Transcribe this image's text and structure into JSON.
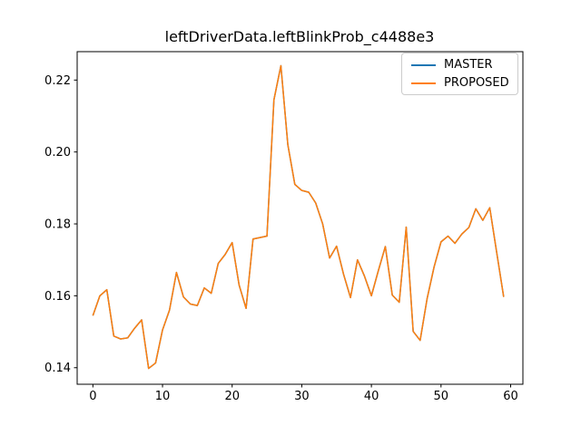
{
  "figure": {
    "title": "leftDriverData.leftBlinkProb_c4488e3",
    "background": "#ffffff",
    "axes_edge_color": "#000000"
  },
  "legend": {
    "position": "upper right",
    "entries": [
      {
        "label": "MASTER",
        "color": "#1f77b4"
      },
      {
        "label": "PROPOSED",
        "color": "#ff7f0e"
      }
    ]
  },
  "chart_data": {
    "type": "line",
    "title": "leftDriverData.leftBlinkProb_c4488e3",
    "xlabel": "",
    "ylabel": "",
    "grid": false,
    "legend_position": "upper right",
    "xlim": [
      -2.26,
      61.76
    ],
    "ylim": [
      0.1354,
      0.2279
    ],
    "xticks": [
      0,
      10,
      20,
      30,
      40,
      50,
      60
    ],
    "xtick_labels": [
      "0",
      "10",
      "20",
      "30",
      "40",
      "50",
      "60"
    ],
    "yticks": [
      0.14,
      0.16,
      0.18,
      0.2,
      0.22
    ],
    "ytick_labels": [
      "0.14",
      "0.16",
      "0.18",
      "0.20",
      "0.22"
    ],
    "x": [
      0,
      1,
      2,
      3,
      4,
      5,
      6,
      7,
      8,
      9,
      10,
      11,
      12,
      13,
      14,
      15,
      16,
      17,
      18,
      19,
      20,
      21,
      22,
      23,
      24,
      25,
      26,
      27,
      28,
      29,
      30,
      31,
      32,
      33,
      34,
      35,
      36,
      37,
      38,
      39,
      40,
      41,
      42,
      43,
      44,
      45,
      46,
      47,
      48,
      49,
      50,
      51,
      52,
      53,
      54,
      55,
      56,
      57,
      58,
      59
    ],
    "series": [
      {
        "name": "MASTER",
        "color": "#1f77b4",
        "values": [
          0.1545,
          0.16,
          0.1617,
          0.1488,
          0.148,
          0.1483,
          0.151,
          0.1533,
          0.1398,
          0.1413,
          0.1505,
          0.156,
          0.1665,
          0.1597,
          0.1577,
          0.1573,
          0.1622,
          0.1607,
          0.169,
          0.1715,
          0.1748,
          0.163,
          0.1565,
          0.1758,
          0.1762,
          0.1766,
          0.2145,
          0.224,
          0.202,
          0.191,
          0.1893,
          0.1888,
          0.1858,
          0.18,
          0.1705,
          0.1738,
          0.166,
          0.1595,
          0.17,
          0.1655,
          0.16,
          0.167,
          0.1737,
          0.1602,
          0.1582,
          0.1791,
          0.1501,
          0.1476,
          0.1592,
          0.168,
          0.175,
          0.1766,
          0.1746,
          0.1772,
          0.179,
          0.1842,
          0.181,
          0.1845,
          0.172,
          0.1597
        ]
      },
      {
        "name": "PROPOSED",
        "color": "#ff7f0e",
        "values": [
          0.1545,
          0.16,
          0.1617,
          0.1488,
          0.148,
          0.1483,
          0.151,
          0.1533,
          0.1398,
          0.1413,
          0.1505,
          0.156,
          0.1665,
          0.1597,
          0.1577,
          0.1573,
          0.1622,
          0.1607,
          0.169,
          0.1715,
          0.1748,
          0.163,
          0.1565,
          0.1758,
          0.1762,
          0.1766,
          0.2145,
          0.224,
          0.202,
          0.191,
          0.1893,
          0.1888,
          0.1858,
          0.18,
          0.1705,
          0.1738,
          0.166,
          0.1595,
          0.17,
          0.1655,
          0.16,
          0.167,
          0.1737,
          0.1602,
          0.1582,
          0.1791,
          0.1501,
          0.1476,
          0.1592,
          0.168,
          0.175,
          0.1766,
          0.1746,
          0.1772,
          0.179,
          0.1842,
          0.181,
          0.1845,
          0.172,
          0.1597
        ]
      }
    ]
  },
  "layout_note": "lines overlap; PROPOSED drawn over MASTER"
}
